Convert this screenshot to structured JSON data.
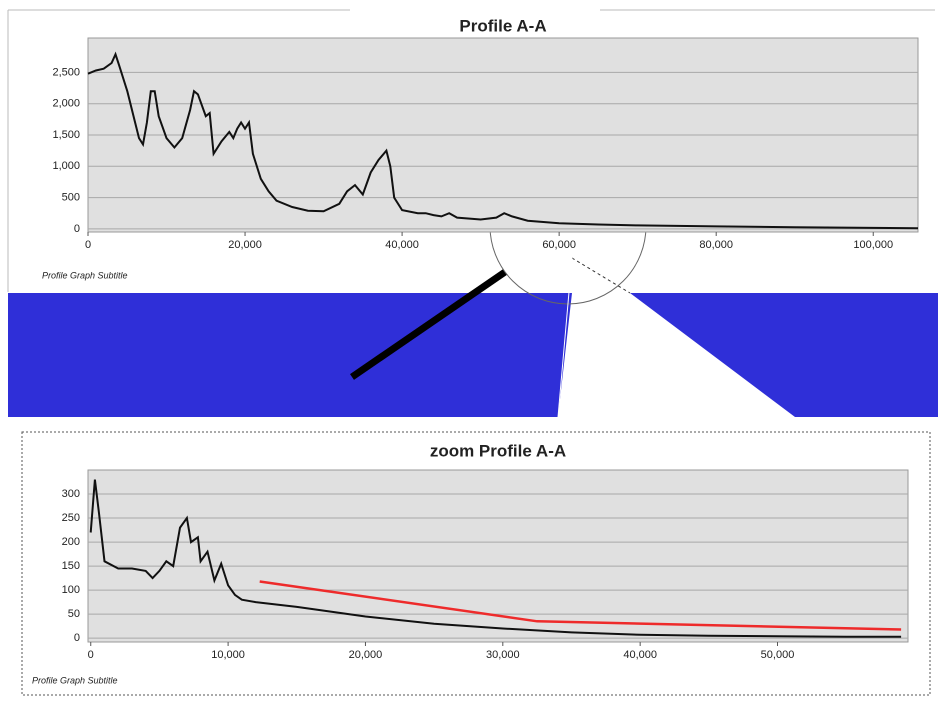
{
  "chart_data": [
    {
      "type": "line",
      "title": "Profile A-A",
      "subtitle": "Profile Graph Subtitle",
      "xlim": [
        0,
        105700
      ],
      "ylim": [
        -50,
        3050
      ],
      "xticks": [
        0,
        {
          "value": 20000,
          "label": "20,000"
        },
        {
          "value": 40000,
          "label": "40,000"
        },
        {
          "value": 60000,
          "label": "60,000"
        },
        {
          "value": 80000,
          "label": "80,000"
        },
        {
          "value": 100000,
          "label": "100,000"
        }
      ],
      "yticks": [
        0,
        500,
        {
          "value": 1000,
          "label": "1,000"
        },
        {
          "value": 1500,
          "label": "1,500"
        },
        {
          "value": 2000,
          "label": "2,000"
        },
        {
          "value": 2500,
          "label": "2,500"
        }
      ],
      "grid": true,
      "series": [
        {
          "color": "#111111",
          "x": [
            0,
            1000,
            2000,
            3000,
            3500,
            4000,
            5000,
            6000,
            6500,
            7000,
            7500,
            8000,
            8500,
            9000,
            10000,
            11000,
            12000,
            13000,
            13500,
            14000,
            15000,
            15500,
            16000,
            17000,
            18000,
            18500,
            19000,
            19500,
            20000,
            20500,
            21000,
            22000,
            23000,
            24000,
            26000,
            28000,
            30000,
            32000,
            33000,
            34000,
            35000,
            36000,
            37000,
            38000,
            38500,
            39000,
            40000,
            42000,
            43000,
            44000,
            45000,
            46000,
            47000,
            50000,
            52000,
            53000,
            54000,
            56000,
            60000,
            65000,
            70000,
            80000,
            90000,
            100000,
            105700
          ],
          "values": [
            2480,
            2530,
            2560,
            2650,
            2790,
            2600,
            2200,
            1700,
            1450,
            1350,
            1700,
            2200,
            2200,
            1800,
            1450,
            1300,
            1450,
            1900,
            2200,
            2150,
            1800,
            1850,
            1200,
            1400,
            1550,
            1450,
            1600,
            1700,
            1600,
            1700,
            1200,
            800,
            600,
            450,
            350,
            290,
            280,
            400,
            600,
            700,
            550,
            900,
            1100,
            1250,
            1000,
            500,
            300,
            250,
            250,
            220,
            200,
            250,
            180,
            150,
            180,
            250,
            200,
            130,
            90,
            70,
            55,
            40,
            25,
            15,
            10
          ]
        }
      ]
    },
    {
      "type": "line",
      "title": "zoom Profile A-A",
      "subtitle": "Profile Graph Subtitle",
      "xlim": [
        -200,
        59500
      ],
      "ylim": [
        -8,
        350
      ],
      "xticks": [
        0,
        {
          "value": 10000,
          "label": "10,000"
        },
        {
          "value": 20000,
          "label": "20,000"
        },
        {
          "value": 30000,
          "label": "30,000"
        },
        {
          "value": 40000,
          "label": "40,000"
        },
        {
          "value": 50000,
          "label": "50,000"
        }
      ],
      "yticks": [
        0,
        50,
        100,
        150,
        200,
        250,
        300
      ],
      "grid": true,
      "series": [
        {
          "color": "#111111",
          "x": [
            0,
            300,
            600,
            1000,
            2000,
            3000,
            4000,
            4500,
            5000,
            5500,
            6000,
            6500,
            7000,
            7300,
            7800,
            8000,
            8500,
            9000,
            9500,
            10000,
            10500,
            11000,
            12000,
            15000,
            20000,
            25000,
            30000,
            35000,
            40000,
            45000,
            50000,
            55000,
            59000
          ],
          "values": [
            220,
            330,
            260,
            160,
            145,
            145,
            140,
            125,
            140,
            160,
            150,
            230,
            250,
            200,
            210,
            160,
            180,
            120,
            155,
            110,
            90,
            80,
            75,
            65,
            45,
            30,
            20,
            12,
            7,
            5,
            4,
            3,
            3
          ]
        },
        {
          "color": "#ee2b2b",
          "x": [
            12300,
            32500,
            59000
          ],
          "values": [
            118,
            35,
            18
          ]
        }
      ]
    }
  ]
}
